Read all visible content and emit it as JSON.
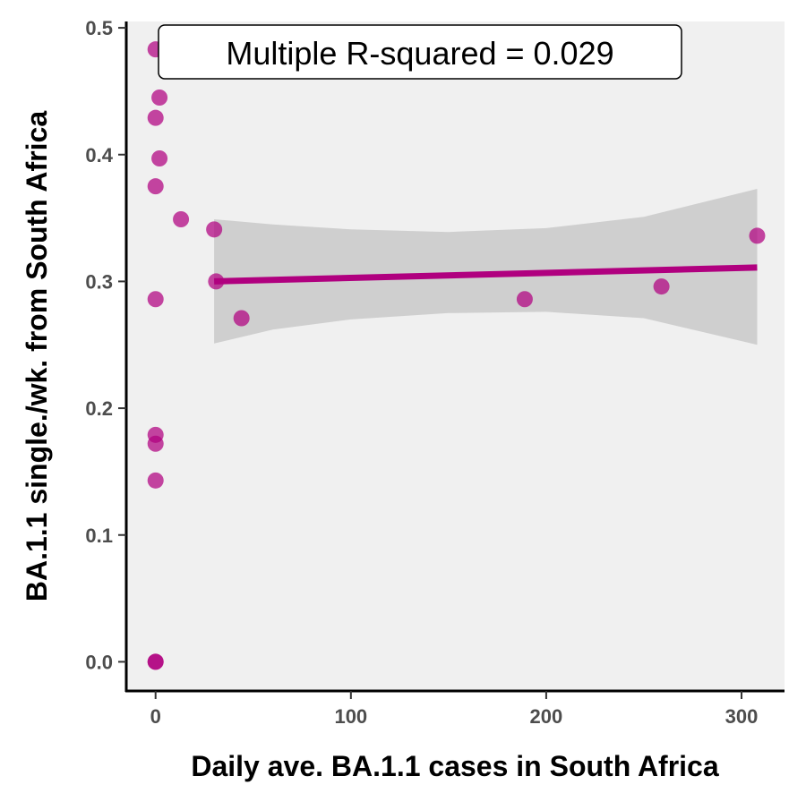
{
  "chart_data": {
    "type": "scatter",
    "xlabel": "Daily ave. BA.1.1 cases in South Africa",
    "ylabel": "BA.1.1 single./wk. from South Africa",
    "xlim": [
      -15,
      322
    ],
    "ylim": [
      -0.023,
      0.505
    ],
    "x_ticks": [
      0,
      100,
      200,
      300
    ],
    "y_ticks": [
      0.0,
      0.1,
      0.2,
      0.3,
      0.4,
      0.5
    ],
    "x_tick_labels": [
      "0",
      "100",
      "200",
      "300"
    ],
    "y_tick_labels": [
      "0.0",
      "0.1",
      "0.2",
      "0.3",
      "0.4",
      "0.5"
    ],
    "grid": false,
    "annotation": "Multiple R-squared = 0.029",
    "colors": {
      "points": "#b0007f",
      "fit_line": "#b0007f",
      "confidence_band": "#bdbdbd",
      "panel_background": "#f0f0f0"
    },
    "points": [
      {
        "x": 0,
        "y": 0.483
      },
      {
        "x": 2,
        "y": 0.445
      },
      {
        "x": 0,
        "y": 0.429
      },
      {
        "x": 2,
        "y": 0.397
      },
      {
        "x": 0,
        "y": 0.375
      },
      {
        "x": 13,
        "y": 0.349
      },
      {
        "x": 30,
        "y": 0.341
      },
      {
        "x": 31,
        "y": 0.3
      },
      {
        "x": 0,
        "y": 0.286
      },
      {
        "x": 44,
        "y": 0.271
      },
      {
        "x": 189,
        "y": 0.286
      },
      {
        "x": 259,
        "y": 0.296
      },
      {
        "x": 308,
        "y": 0.336
      },
      {
        "x": 0,
        "y": 0.179
      },
      {
        "x": 0,
        "y": 0.172
      },
      {
        "x": 0,
        "y": 0.143
      },
      {
        "x": 0,
        "y": 0.0
      },
      {
        "x": 0,
        "y": 0.0
      }
    ],
    "fit": {
      "x": [
        30,
        308
      ],
      "y": [
        0.3,
        0.311
      ]
    },
    "confidence_band": {
      "x": [
        30,
        60,
        100,
        150,
        200,
        250,
        308
      ],
      "upper": [
        0.349,
        0.345,
        0.341,
        0.339,
        0.342,
        0.351,
        0.373
      ],
      "lower": [
        0.251,
        0.262,
        0.27,
        0.275,
        0.276,
        0.271,
        0.25
      ]
    }
  }
}
